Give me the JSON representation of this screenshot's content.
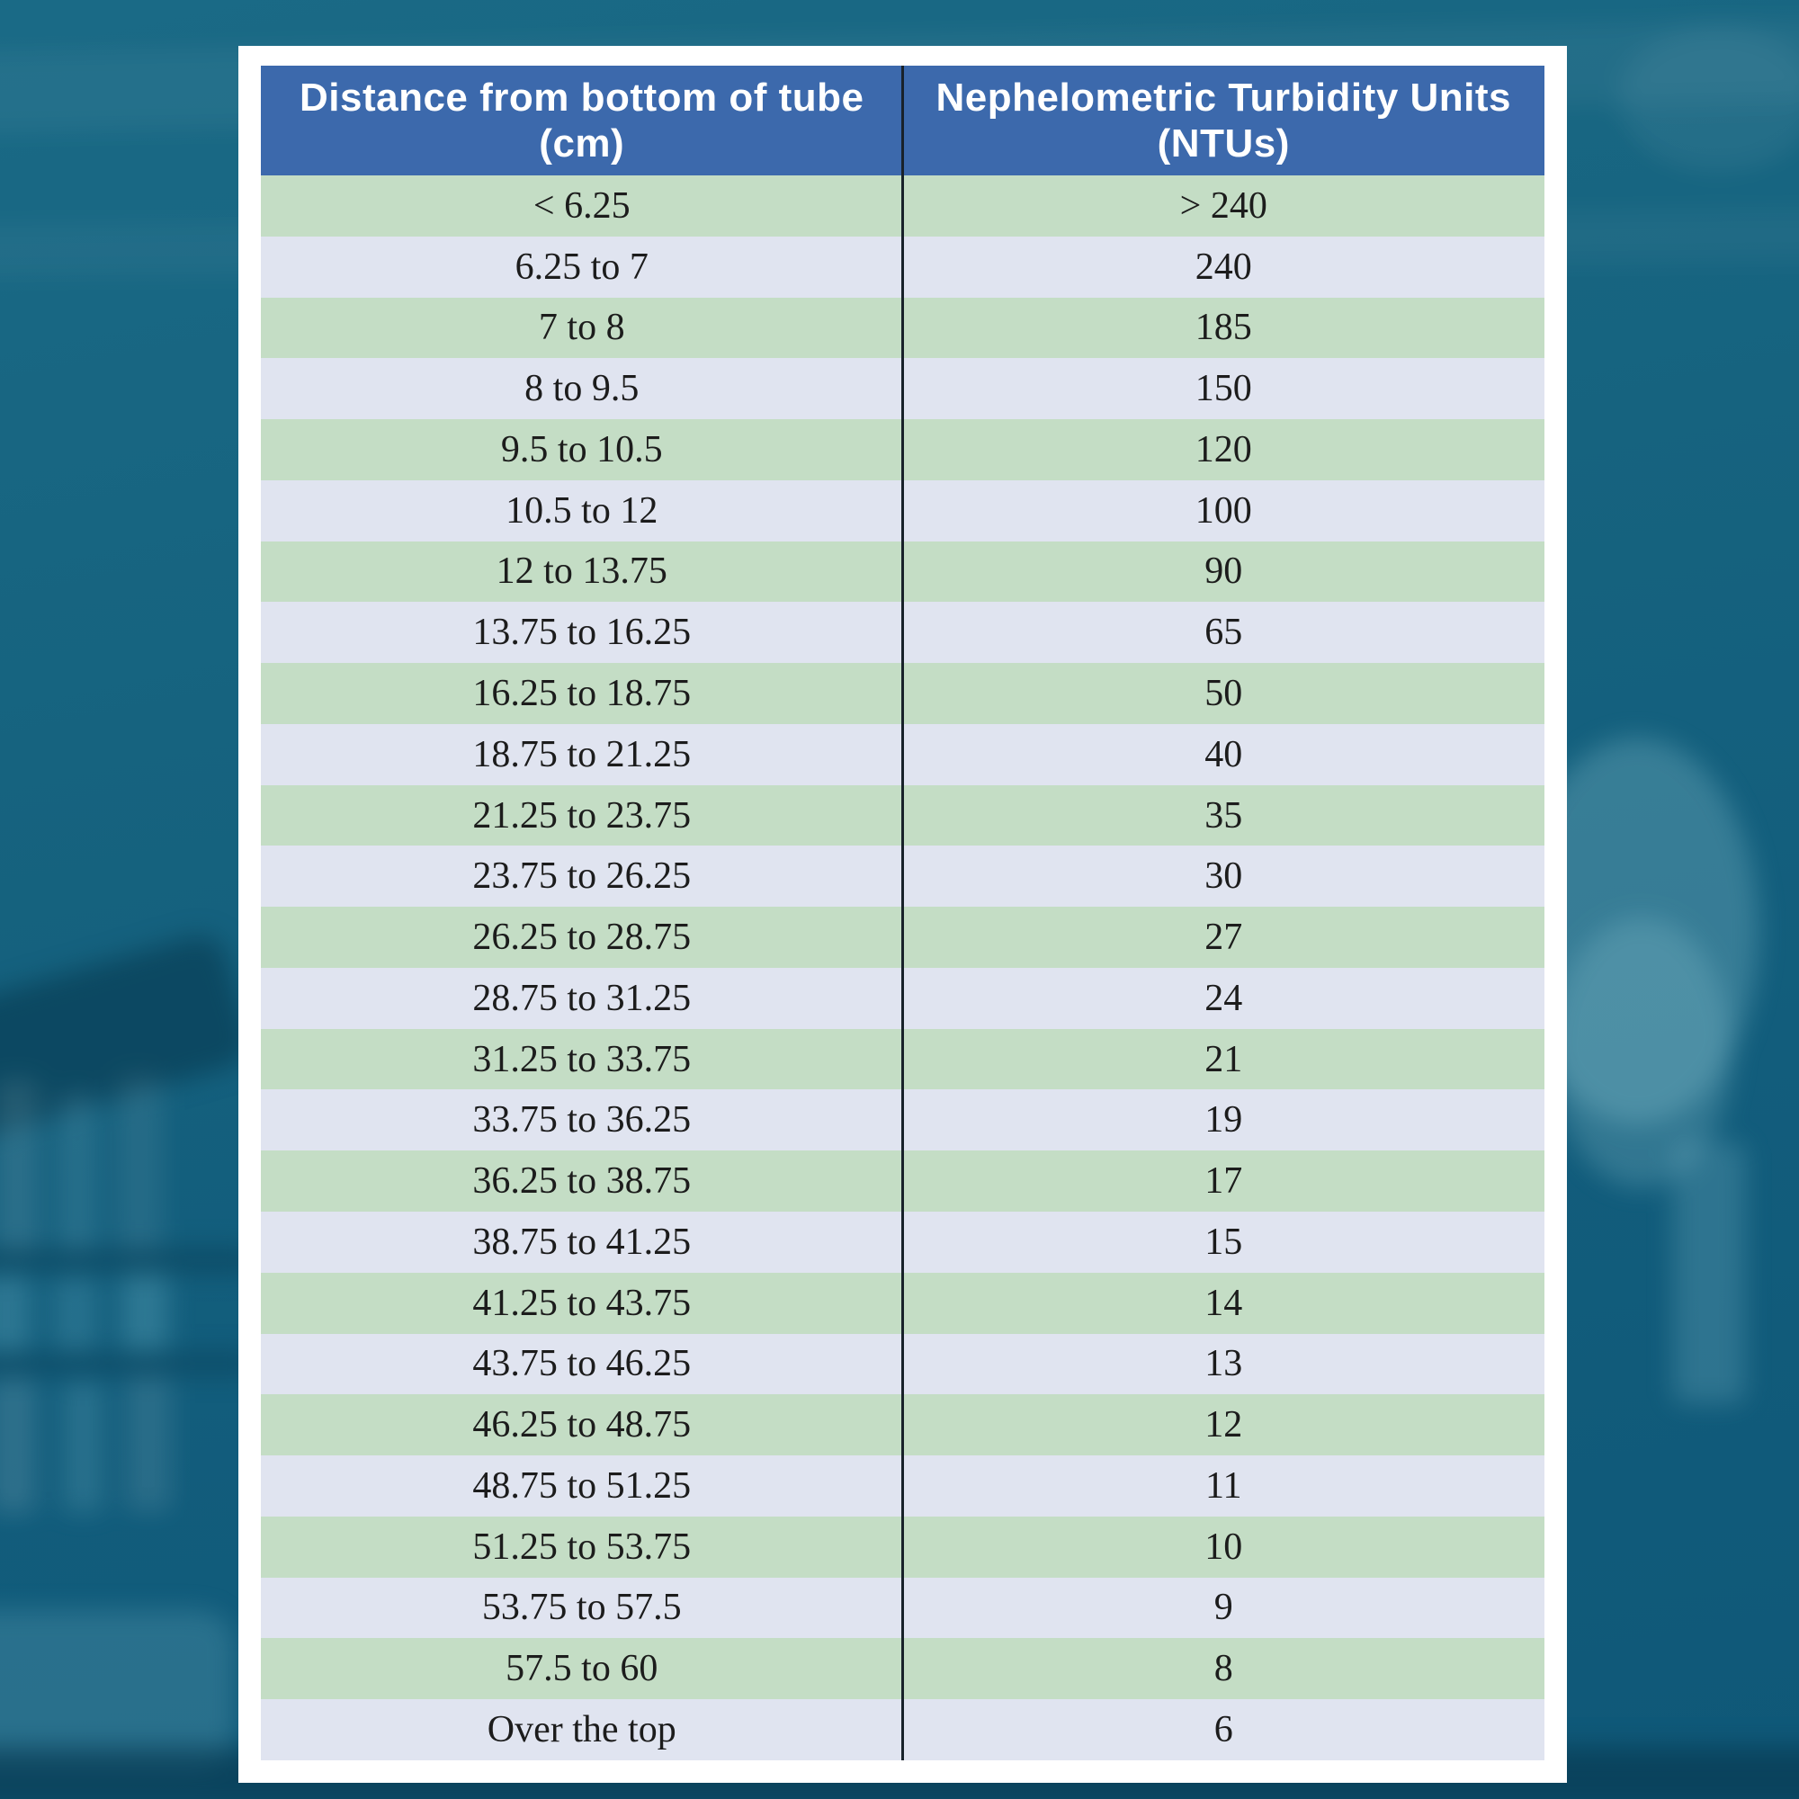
{
  "table": {
    "header": {
      "col1_line1": "Distance from bottom of tube",
      "col1_line2": "(cm)",
      "col2_line1": "Nephelometric Turbidity Units",
      "col2_line2": "(NTUs)"
    },
    "rows": [
      {
        "distance": "< 6.25",
        "ntu": "> 240"
      },
      {
        "distance": "6.25 to 7",
        "ntu": "240"
      },
      {
        "distance": "7 to 8",
        "ntu": "185"
      },
      {
        "distance": "8 to 9.5",
        "ntu": "150"
      },
      {
        "distance": "9.5 to 10.5",
        "ntu": "120"
      },
      {
        "distance": "10.5 to 12",
        "ntu": "100"
      },
      {
        "distance": "12 to 13.75",
        "ntu": "90"
      },
      {
        "distance": "13.75 to 16.25",
        "ntu": "65"
      },
      {
        "distance": "16.25 to 18.75",
        "ntu": "50"
      },
      {
        "distance": "18.75 to 21.25",
        "ntu": "40"
      },
      {
        "distance": "21.25 to 23.75",
        "ntu": "35"
      },
      {
        "distance": "23.75 to 26.25",
        "ntu": "30"
      },
      {
        "distance": "26.25 to 28.75",
        "ntu": "27"
      },
      {
        "distance": "28.75 to 31.25",
        "ntu": "24"
      },
      {
        "distance": "31.25 to 33.75",
        "ntu": "21"
      },
      {
        "distance": "33.75 to 36.25",
        "ntu": "19"
      },
      {
        "distance": "36.25 to 38.75",
        "ntu": "17"
      },
      {
        "distance": "38.75 to 41.25",
        "ntu": "15"
      },
      {
        "distance": "41.25 to 43.75",
        "ntu": "14"
      },
      {
        "distance": "43.75 to 46.25",
        "ntu": "13"
      },
      {
        "distance": "46.25 to 48.75",
        "ntu": "12"
      },
      {
        "distance": "48.75 to 51.25",
        "ntu": "11"
      },
      {
        "distance": "51.25 to 53.75",
        "ntu": "10"
      },
      {
        "distance": "53.75 to 57.5",
        "ntu": "9"
      },
      {
        "distance": "57.5 to 60",
        "ntu": "8"
      },
      {
        "distance": "Over the top",
        "ntu": "6"
      }
    ]
  },
  "colors": {
    "header_bg": "#3C69AC",
    "header_text": "#FFFFFF",
    "row_green": "#C4DDC5",
    "row_lavender": "#E0E4F0",
    "body_text": "#1C1C1C",
    "divider": "#18222A",
    "card_bg": "#FFFFFF",
    "background_teal": "#14617F"
  },
  "chart_data": {
    "type": "table",
    "title": "",
    "columns": [
      "Distance from bottom of tube (cm)",
      "Nephelometric Turbidity Units (NTUs)"
    ],
    "categories": [
      "< 6.25",
      "6.25 to 7",
      "7 to 8",
      "8 to 9.5",
      "9.5 to 10.5",
      "10.5 to 12",
      "12 to 13.75",
      "13.75 to 16.25",
      "16.25 to 18.75",
      "18.75 to 21.25",
      "21.25 to 23.75",
      "23.75 to 26.25",
      "26.25 to 28.75",
      "28.75 to 31.25",
      "31.25 to 33.75",
      "33.75 to 36.25",
      "36.25 to 38.75",
      "38.75 to 41.25",
      "41.25 to 43.75",
      "43.75 to 46.25",
      "46.25 to 48.75",
      "48.75 to 51.25",
      "51.25 to 53.75",
      "53.75 to 57.5",
      "57.5 to 60",
      "Over the top"
    ],
    "values": [
      "> 240",
      240,
      185,
      150,
      120,
      100,
      90,
      65,
      50,
      40,
      35,
      30,
      27,
      24,
      21,
      19,
      17,
      15,
      14,
      13,
      12,
      11,
      10,
      9,
      8,
      6
    ]
  }
}
